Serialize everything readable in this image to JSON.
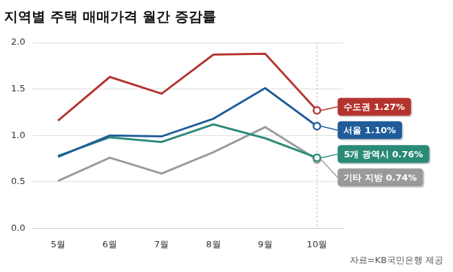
{
  "chart_data": {
    "type": "line",
    "title": "지역별 주택 매매가격 월간 증감률",
    "source": "자료=KB국민은행 제공",
    "categories": [
      "5월",
      "6월",
      "7월",
      "8월",
      "9월",
      "10월"
    ],
    "series": [
      {
        "name": "수도권",
        "color": "#b5332e",
        "values": [
          1.16,
          1.63,
          1.45,
          1.87,
          1.88,
          1.27
        ],
        "value_labels": [
          null,
          null,
          null,
          null,
          null,
          "1.27%"
        ]
      },
      {
        "name": "서울",
        "color": "#1f5c99",
        "values": [
          0.77,
          1.0,
          0.99,
          1.18,
          1.51,
          1.1
        ],
        "value_labels": [
          null,
          null,
          null,
          null,
          null,
          "1.10%"
        ]
      },
      {
        "name": "5개 광역시",
        "color": "#2a8a78",
        "values": [
          0.78,
          0.98,
          0.93,
          1.12,
          0.97,
          0.76
        ],
        "value_labels": [
          null,
          null,
          null,
          null,
          null,
          "0.76%"
        ]
      },
      {
        "name": "기타 지방",
        "color": "#9a9a9a",
        "values": [
          0.51,
          0.76,
          0.59,
          0.82,
          1.09,
          0.74
        ],
        "value_labels": [
          null,
          null,
          null,
          null,
          null,
          "0.74%"
        ]
      }
    ],
    "ylim": [
      0,
      2.0
    ],
    "yticks": [
      {
        "value": 0,
        "label": "0.0"
      },
      0.5,
      {
        "value": 1,
        "label": "1.0"
      },
      1.5,
      {
        "value": 2,
        "label": "2.0"
      }
    ],
    "grid": true,
    "data_labels": true
  }
}
